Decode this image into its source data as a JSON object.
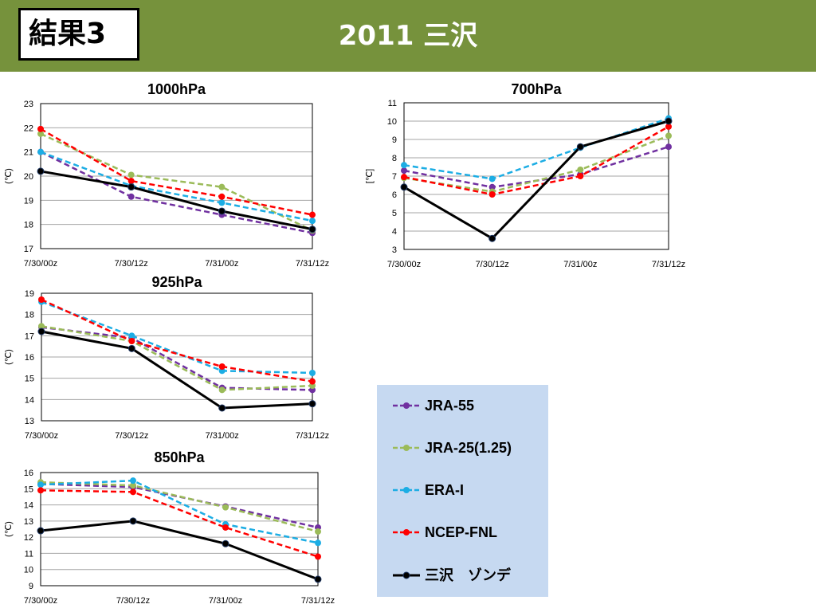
{
  "header": {
    "badge": "結果3",
    "title": "2011 三沢"
  },
  "colors": {
    "header_bg": "#76923c",
    "legend_bg": "#c6d9f1"
  },
  "series_styles": [
    {
      "name": "JRA-55",
      "color": "#7030a0",
      "dashed": true
    },
    {
      "name": "JRA-25(1.25)",
      "color": "#9bbb59",
      "dashed": true
    },
    {
      "name": "ERA-I",
      "color": "#1cade4",
      "dashed": true
    },
    {
      "name": "NCEP-FNL",
      "color": "#ff0000",
      "dashed": true
    },
    {
      "name": "三沢　ゾンデ",
      "color": "#000000",
      "dashed": false
    }
  ],
  "legend": {
    "items": [
      "JRA-55",
      "JRA-25(1.25)",
      "ERA-I",
      "NCEP-FNL",
      "三沢　ゾンデ"
    ]
  },
  "chart_data": [
    {
      "type": "line",
      "title": "1000hPa",
      "ylabel": "(℃)",
      "categories": [
        "7/30/00z",
        "7/30/12z",
        "7/31/00z",
        "7/31/12z"
      ],
      "ylim": [
        17,
        23
      ],
      "yticks": [
        17,
        18,
        19,
        20,
        21,
        22,
        23
      ],
      "grid": true,
      "series": [
        {
          "name": "JRA-55",
          "values": [
            21.0,
            19.15,
            18.4,
            17.65
          ]
        },
        {
          "name": "JRA-25(1.25)",
          "values": [
            21.75,
            20.05,
            19.55,
            17.75
          ]
        },
        {
          "name": "ERA-I",
          "values": [
            21.0,
            19.6,
            18.9,
            18.15
          ]
        },
        {
          "name": "NCEP-FNL",
          "values": [
            21.95,
            19.8,
            19.15,
            18.4
          ]
        },
        {
          "name": "三沢　ゾンデ",
          "values": [
            20.2,
            19.55,
            18.55,
            17.8
          ]
        }
      ]
    },
    {
      "type": "line",
      "title": "700hPa",
      "ylabel": "[℃]",
      "categories": [
        "7/30/00z",
        "7/30/12z",
        "7/31/00z",
        "7/31/12z"
      ],
      "ylim": [
        3,
        11
      ],
      "yticks": [
        3,
        4,
        5,
        6,
        7,
        8,
        9,
        10,
        11
      ],
      "grid": true,
      "series": [
        {
          "name": "JRA-55",
          "values": [
            7.3,
            6.4,
            7.1,
            8.6
          ]
        },
        {
          "name": "JRA-25(1.25)",
          "values": [
            6.9,
            6.15,
            7.35,
            9.2
          ]
        },
        {
          "name": "ERA-I",
          "values": [
            7.6,
            6.85,
            8.55,
            10.15
          ]
        },
        {
          "name": "NCEP-FNL",
          "values": [
            6.95,
            6.0,
            7.0,
            9.7
          ]
        },
        {
          "name": "三沢　ゾンデ",
          "values": [
            6.4,
            3.6,
            8.6,
            10.0
          ]
        }
      ]
    },
    {
      "type": "line",
      "title": "925hPa",
      "ylabel": "(℃)",
      "categories": [
        "7/30/00z",
        "7/30/12z",
        "7/31/00z",
        "7/31/12z"
      ],
      "ylim": [
        13,
        19
      ],
      "yticks": [
        13,
        14,
        15,
        16,
        17,
        18,
        19
      ],
      "grid": true,
      "series": [
        {
          "name": "JRA-55",
          "values": [
            17.4,
            16.9,
            14.55,
            14.45
          ]
        },
        {
          "name": "JRA-25(1.25)",
          "values": [
            17.45,
            16.75,
            14.45,
            14.65
          ]
        },
        {
          "name": "ERA-I",
          "values": [
            18.6,
            17.0,
            15.35,
            15.25
          ]
        },
        {
          "name": "NCEP-FNL",
          "values": [
            18.7,
            16.75,
            15.55,
            14.85
          ]
        },
        {
          "name": "三沢　ゾンデ",
          "values": [
            17.2,
            16.4,
            13.6,
            13.8
          ]
        }
      ]
    },
    {
      "type": "line",
      "title": "850hPa",
      "ylabel": "(℃)",
      "categories": [
        "7/30/00z",
        "7/30/12z",
        "7/31/00z",
        "7/31/12z"
      ],
      "ylim": [
        9,
        16
      ],
      "yticks": [
        9,
        10,
        11,
        12,
        13,
        14,
        15,
        16
      ],
      "grid": true,
      "series": [
        {
          "name": "JRA-55",
          "values": [
            15.3,
            15.1,
            13.9,
            12.6
          ]
        },
        {
          "name": "JRA-25(1.25)",
          "values": [
            15.4,
            15.2,
            13.85,
            12.35
          ]
        },
        {
          "name": "ERA-I",
          "values": [
            15.25,
            15.5,
            12.8,
            11.65
          ]
        },
        {
          "name": "NCEP-FNL",
          "values": [
            14.9,
            14.8,
            12.6,
            10.8
          ]
        },
        {
          "name": "三沢　ゾンデ",
          "values": [
            12.4,
            13.0,
            11.6,
            9.4
          ]
        }
      ]
    }
  ]
}
